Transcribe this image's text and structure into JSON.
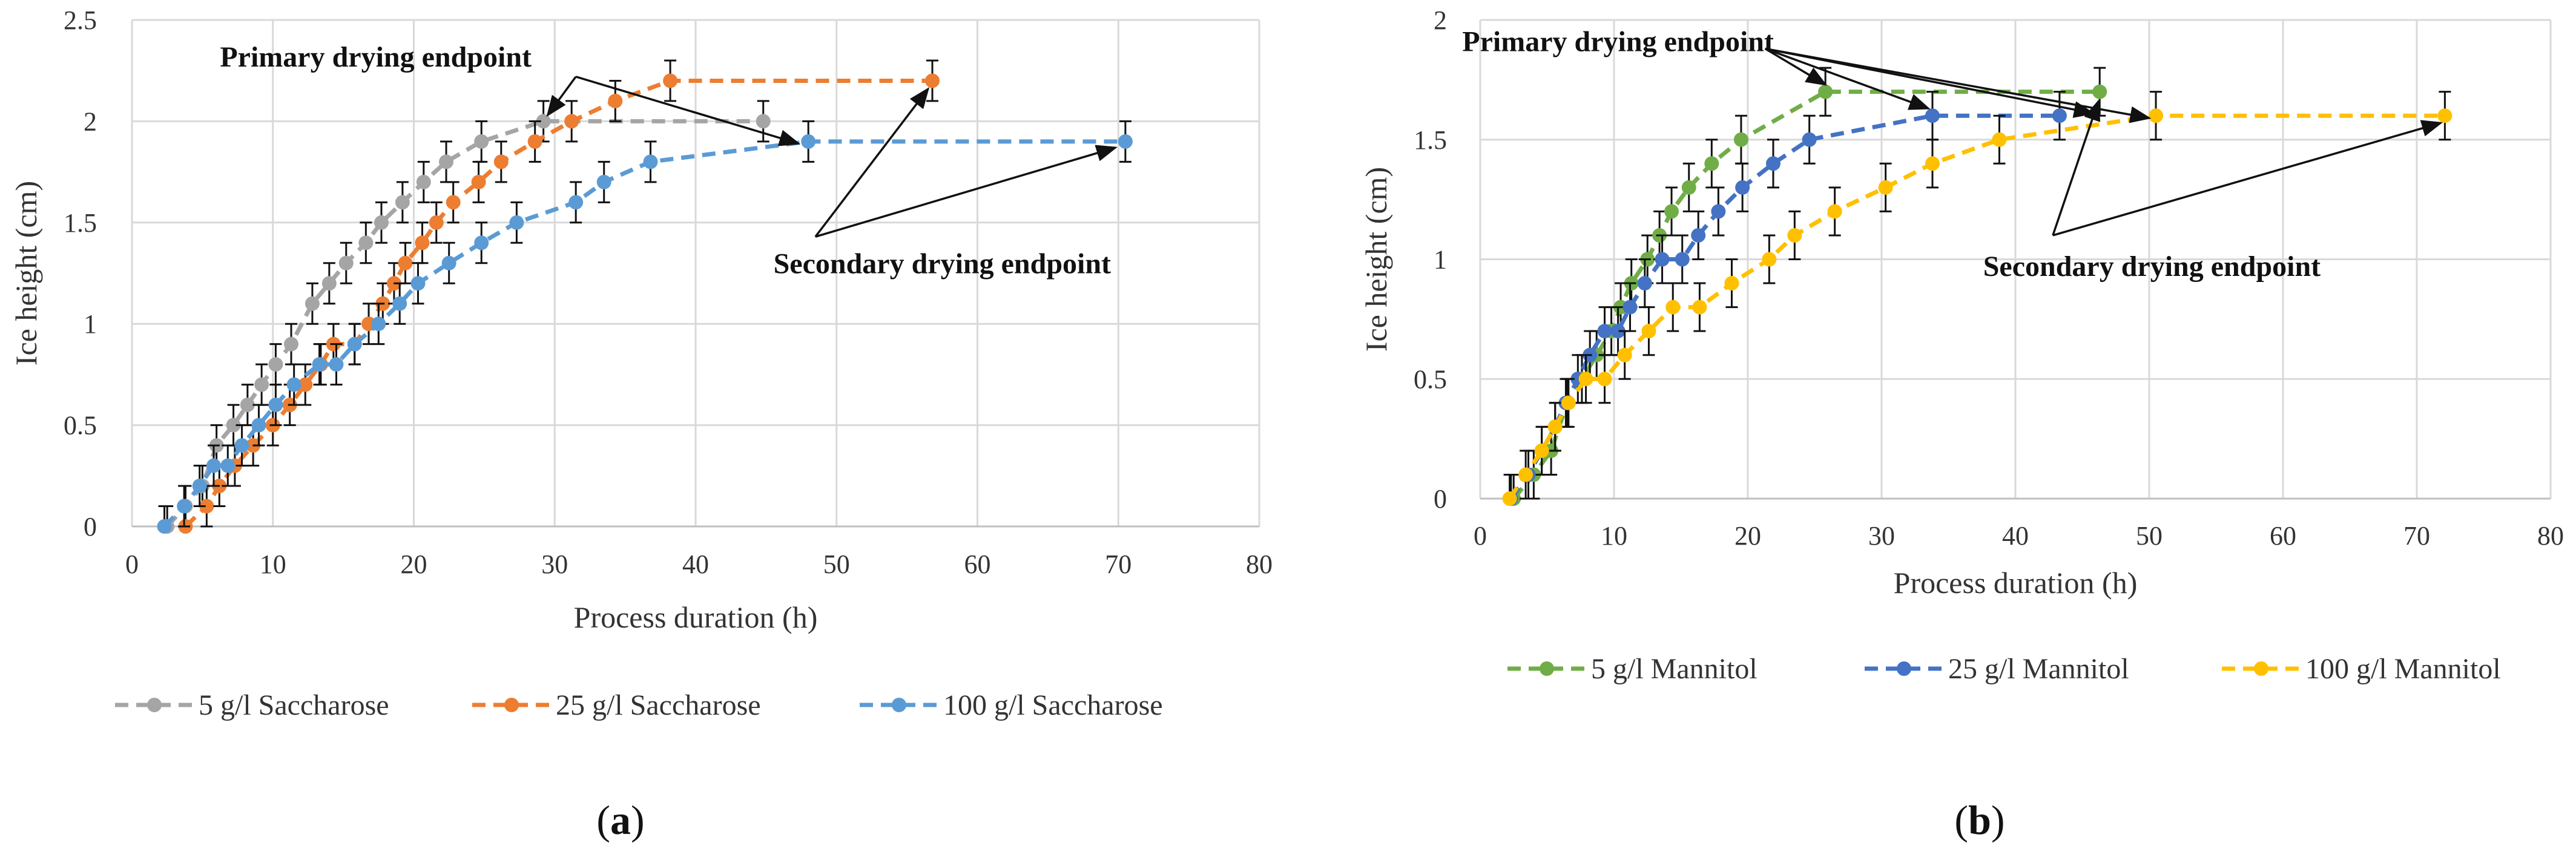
{
  "chart_data": [
    {
      "type": "line",
      "panel_label_open": "(",
      "panel_label_letter": "a",
      "panel_label_close": ")",
      "xlabel": "Process duration (h)",
      "ylabel": "Ice height (cm)",
      "xlim": [
        0,
        80
      ],
      "ylim": [
        0,
        2.5
      ],
      "xticks": [
        0,
        10,
        20,
        30,
        40,
        50,
        60,
        70,
        80
      ],
      "yticks": [
        0,
        0.5,
        1,
        1.5,
        2,
        2.5
      ],
      "ytick_labels": [
        "0",
        "0.5",
        "1",
        "1.5",
        "2",
        "2.5"
      ],
      "grid": true,
      "error_bar": 0.1,
      "legend_position": "bottom",
      "series": [
        {
          "name": "5 g/l Saccharose",
          "color": "#a5a5a5",
          "x": [
            2.5,
            3.8,
            5.0,
            6.0,
            7.2,
            8.2,
            9.2,
            10.2,
            11.3,
            12.8,
            14.0,
            15.2,
            16.6,
            17.7,
            19.2,
            20.7,
            22.3,
            24.8,
            29.2,
            44.8
          ],
          "y": [
            0,
            0.1,
            0.2,
            0.4,
            0.5,
            0.6,
            0.7,
            0.8,
            0.9,
            1.1,
            1.2,
            1.3,
            1.4,
            1.5,
            1.6,
            1.7,
            1.8,
            1.9,
            2.0,
            2.0
          ]
        },
        {
          "name": "25 g/l Saccharose",
          "color": "#ed7d31",
          "x": [
            3.8,
            5.3,
            6.2,
            7.3,
            8.6,
            10.0,
            11.2,
            12.3,
            13.4,
            14.3,
            15.8,
            16.8,
            17.8,
            18.6,
            19.4,
            20.6,
            21.6,
            22.8,
            24.6,
            26.2,
            28.6,
            31.2,
            34.3,
            38.2,
            56.8
          ],
          "y": [
            0,
            0.1,
            0.2,
            0.3,
            0.4,
            0.5,
            0.6,
            0.7,
            0.8,
            0.9,
            0.9,
            1.0,
            1.1,
            1.2,
            1.3,
            1.4,
            1.5,
            1.6,
            1.7,
            1.8,
            1.9,
            2.0,
            2.1,
            2.2,
            2.2
          ]
        },
        {
          "name": "100 g/l Saccharose",
          "color": "#5b9bd5",
          "x": [
            2.3,
            3.7,
            4.8,
            5.8,
            6.8,
            7.8,
            9.0,
            10.2,
            11.5,
            13.3,
            14.5,
            15.8,
            17.5,
            19.0,
            20.3,
            22.5,
            24.8,
            27.3,
            31.5,
            33.5,
            36.8,
            48.0,
            70.5
          ],
          "y": [
            0,
            0.1,
            0.2,
            0.3,
            0.3,
            0.4,
            0.5,
            0.6,
            0.7,
            0.8,
            0.8,
            0.9,
            1.0,
            1.1,
            1.2,
            1.3,
            1.4,
            1.5,
            1.6,
            1.7,
            1.8,
            1.9,
            1.9
          ]
        }
      ],
      "annotations": [
        {
          "text": "Primary drying endpoint",
          "x": 17.3,
          "y": 2.27,
          "anchor": "middle",
          "arrows": [
            {
              "from": [
                31.5,
                2.22
              ],
              "to": [
                29.5,
                2.03
              ]
            },
            {
              "from": [
                31.5,
                2.22
              ],
              "to": [
                47.3,
                1.89
              ]
            }
          ]
        },
        {
          "text": "Secondary drying endpoint",
          "x": 57.5,
          "y": 1.25,
          "anchor": "middle",
          "arrows": [
            {
              "from": [
                48.5,
                1.43
              ],
              "to": [
                56.5,
                2.16
              ]
            },
            {
              "from": [
                48.5,
                1.43
              ],
              "to": [
                69.8,
                1.87
              ]
            }
          ]
        }
      ]
    },
    {
      "type": "line",
      "panel_label_open": "(",
      "panel_label_letter": "b",
      "panel_label_close": ")",
      "xlabel": "Process duration (h)",
      "ylabel": "Ice height (cm)",
      "xlim": [
        0,
        80
      ],
      "ylim": [
        0,
        2
      ],
      "xticks": [
        0,
        10,
        20,
        30,
        40,
        50,
        60,
        70,
        80
      ],
      "yticks": [
        0,
        0.5,
        1,
        1.5,
        2
      ],
      "ytick_labels": [
        "0",
        "0.5",
        "1",
        "1.5",
        "2"
      ],
      "grid": true,
      "error_bar": 0.1,
      "legend_position": "bottom",
      "series": [
        {
          "name": "5 g/l Mannitol",
          "color": "#70ad47",
          "x": [
            2.5,
            4.0,
            5.3,
            6.5,
            7.6,
            8.7,
            9.8,
            10.5,
            11.3,
            12.5,
            13.4,
            14.3,
            15.6,
            17.3,
            19.5,
            25.8,
            46.3
          ],
          "y": [
            0,
            0.1,
            0.2,
            0.4,
            0.5,
            0.6,
            0.7,
            0.8,
            0.9,
            1.0,
            1.1,
            1.2,
            1.3,
            1.4,
            1.5,
            1.7,
            1.7
          ]
        },
        {
          "name": "25 g/l Mannitol",
          "color": "#4472c4",
          "x": [
            2.3,
            3.6,
            4.6,
            5.6,
            6.4,
            7.3,
            8.2,
            9.3,
            10.3,
            11.2,
            12.3,
            13.6,
            15.1,
            16.3,
            17.8,
            19.6,
            21.9,
            24.6,
            33.8,
            43.3
          ],
          "y": [
            0,
            0.1,
            0.2,
            0.3,
            0.4,
            0.5,
            0.6,
            0.7,
            0.7,
            0.8,
            0.9,
            1.0,
            1.0,
            1.1,
            1.2,
            1.3,
            1.4,
            1.5,
            1.6,
            1.6
          ]
        },
        {
          "name": "100 g/l Mannitol",
          "color": "#ffc000",
          "x": [
            2.2,
            3.4,
            4.6,
            5.6,
            6.6,
            7.9,
            9.3,
            10.8,
            12.6,
            14.4,
            16.4,
            18.8,
            21.6,
            23.5,
            26.5,
            30.3,
            33.8,
            38.8,
            50.5,
            72.1
          ],
          "y": [
            0,
            0.1,
            0.2,
            0.3,
            0.4,
            0.5,
            0.5,
            0.6,
            0.7,
            0.8,
            0.8,
            0.9,
            1.0,
            1.1,
            1.2,
            1.3,
            1.4,
            1.5,
            1.6,
            1.6
          ]
        }
      ],
      "annotations": [
        {
          "text": "Primary drying endpoint",
          "x": 10.3,
          "y": 1.87,
          "anchor": "middle",
          "arrows": [
            {
              "from": [
                21.3,
                1.88
              ],
              "to": [
                25.8,
                1.73
              ]
            },
            {
              "from": [
                21.3,
                1.88
              ],
              "to": [
                33.5,
                1.63
              ]
            },
            {
              "from": [
                21.3,
                1.88
              ],
              "to": [
                45.8,
                1.61
              ]
            },
            {
              "from": [
                21.3,
                1.88
              ],
              "to": [
                50.0,
                1.59
              ]
            }
          ]
        },
        {
          "text": "Secondary drying endpoint",
          "x": 50.2,
          "y": 0.93,
          "anchor": "middle",
          "arrows": [
            {
              "from": [
                42.8,
                1.1
              ],
              "to": [
                46.2,
                1.66
              ]
            },
            {
              "from": [
                42.8,
                1.1
              ],
              "to": [
                71.8,
                1.57
              ]
            }
          ]
        }
      ]
    }
  ]
}
